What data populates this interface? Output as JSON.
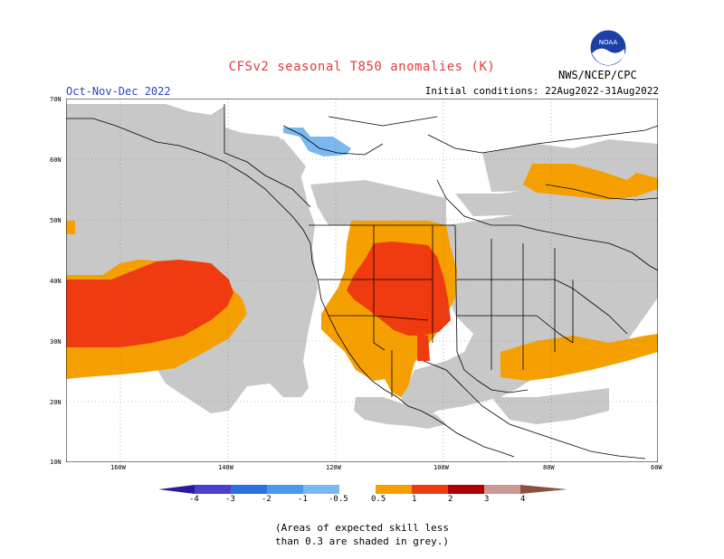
{
  "title": "CFSv2 seasonal T850 anomalies (K)",
  "season": "Oct-Nov-Dec 2022",
  "initial_conditions": "Initial conditions: 22Aug2022-31Aug2022",
  "agency": "NWS/NCEP/CPC",
  "logo_text": "NOAA",
  "lat_labels": [
    "70N",
    "60N",
    "50N",
    "40N",
    "30N",
    "20N",
    "10N"
  ],
  "lon_labels": [
    "160W",
    "140W",
    "120W",
    "100W",
    "80W",
    "60W"
  ],
  "colorbar": {
    "labels": [
      "-4",
      "-3",
      "-2",
      "-1",
      "-0.5",
      "0.5",
      "1",
      "2",
      "3",
      "4"
    ],
    "colors": [
      "#2a1a9e",
      "#4a3fcf",
      "#2a70e0",
      "#4a98ea",
      "#7ab8f0",
      "#ffffff",
      "#f5a000",
      "#f03a10",
      "#b00000",
      "#6a0000",
      "#cc9a92",
      "#8c5040"
    ]
  },
  "anomaly_colors": {
    "grey_low_skill": "#c8c8c8",
    "orange_0_5_to_1": "#f5a000",
    "red_1_to_2": "#f03a10",
    "lightblue_minus_1_to_minus_0_5": "#7ab8f0"
  },
  "note_line1": "(Areas of expected skill less",
  "note_line2": "than 0.3 are shaded in grey.)"
}
